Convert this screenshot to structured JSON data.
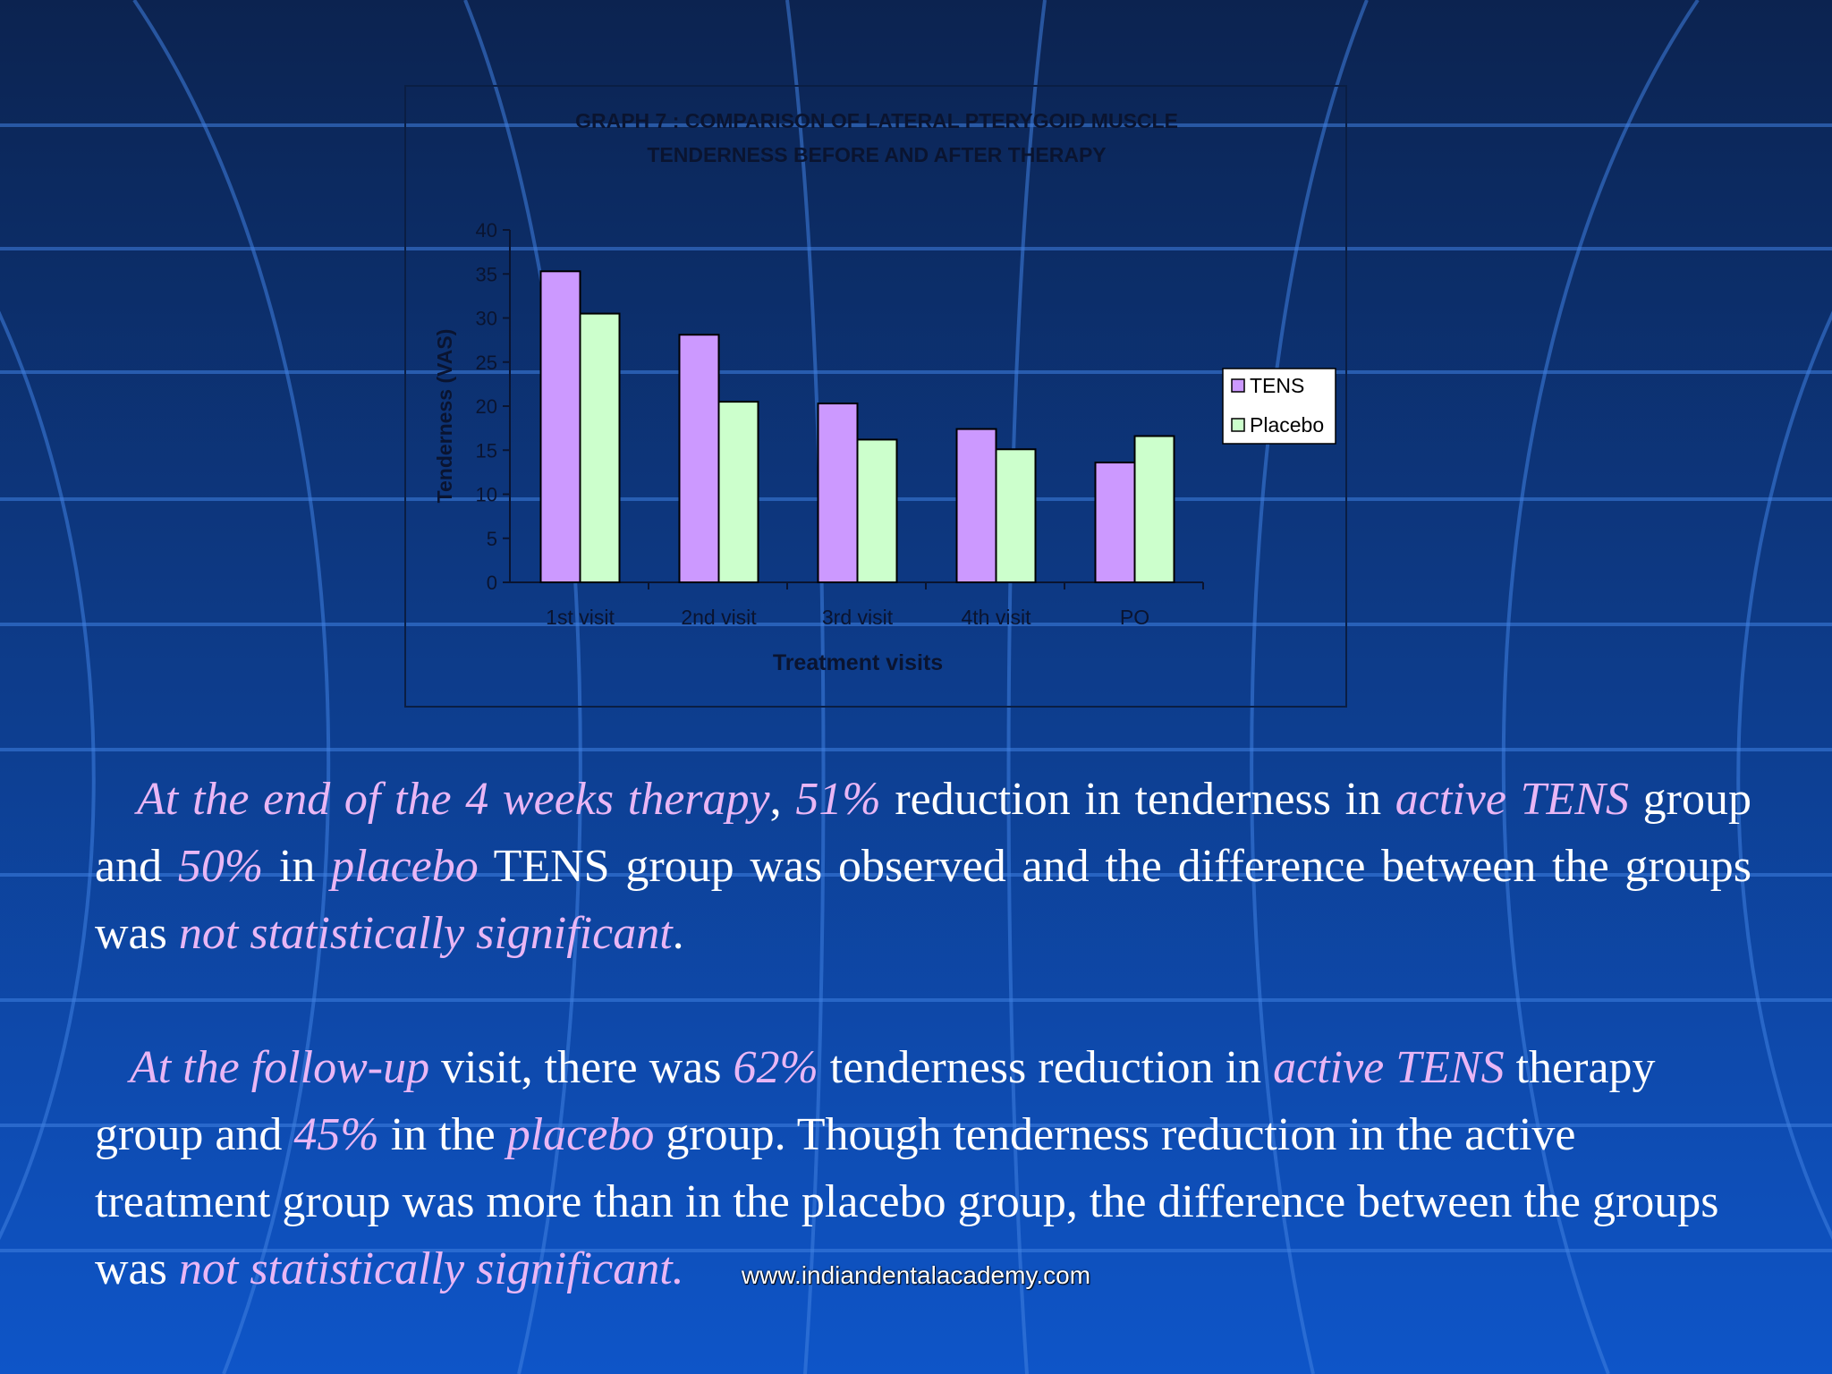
{
  "theme": {
    "highlight_color": "#e9b6f5",
    "text_color": "#ffffff",
    "bg_top": "#0c2350",
    "bg_bottom": "#0e55c8",
    "grid_line_color": "#3f7fe0"
  },
  "chart_data": {
    "type": "bar",
    "title_lines": [
      "GRAPH 7 : COMPARISON OF LATERAL PTERYGOID MUSCLE",
      "TENDERNESS BEFORE AND AFTER THERAPY"
    ],
    "xlabel": "Treatment visits",
    "ylabel": "Tenderness (VAS)",
    "categories": [
      "1st visit",
      "2nd visit",
      "3rd visit",
      "4th visit",
      "PO"
    ],
    "ylim": [
      0,
      40
    ],
    "yticks": [
      0,
      5,
      10,
      15,
      20,
      25,
      30,
      35,
      40
    ],
    "grid": false,
    "legend_position": "right",
    "series": [
      {
        "name": "TENS",
        "color": "#cc99ff",
        "values": [
          35.3,
          28.1,
          20.3,
          17.4,
          13.6
        ]
      },
      {
        "name": "Placebo",
        "color": "#ccffcc",
        "values": [
          30.5,
          20.5,
          16.2,
          15.1,
          16.6
        ]
      }
    ]
  },
  "paragraphs": [
    [
      {
        "t": "At the end of the 4 weeks therapy",
        "hl": true
      },
      {
        "t": ", ",
        "hl": false
      },
      {
        "t": "51%",
        "hl": true
      },
      {
        "t": " reduction in tenderness in ",
        "hl": false
      },
      {
        "t": "active TENS",
        "hl": true
      },
      {
        "t": " group and ",
        "hl": false
      },
      {
        "t": "50%",
        "hl": true
      },
      {
        "t": " in ",
        "hl": false
      },
      {
        "t": "placebo",
        "hl": true
      },
      {
        "t": " TENS group was observed and the difference between the groups was ",
        "hl": false
      },
      {
        "t": "not statistically significant",
        "hl": true
      },
      {
        "t": ".",
        "hl": false
      }
    ],
    [
      {
        "t": "At the follow-up",
        "hl": true
      },
      {
        "t": " visit, there was ",
        "hl": false
      },
      {
        "t": "62%",
        "hl": true
      },
      {
        "t": " tenderness reduction in ",
        "hl": false
      },
      {
        "t": "active TENS",
        "hl": true
      },
      {
        "t": " therapy group and ",
        "hl": false
      },
      {
        "t": "45%",
        "hl": true
      },
      {
        "t": " in the ",
        "hl": false
      },
      {
        "t": "placebo",
        "hl": true
      },
      {
        "t": " group. Though tenderness reduction in the active treatment group was more than in the placebo group, the difference between the groups was ",
        "hl": false
      },
      {
        "t": "not statistically significant.",
        "hl": true
      }
    ]
  ],
  "watermark": "www.indiandentalacademy.com"
}
